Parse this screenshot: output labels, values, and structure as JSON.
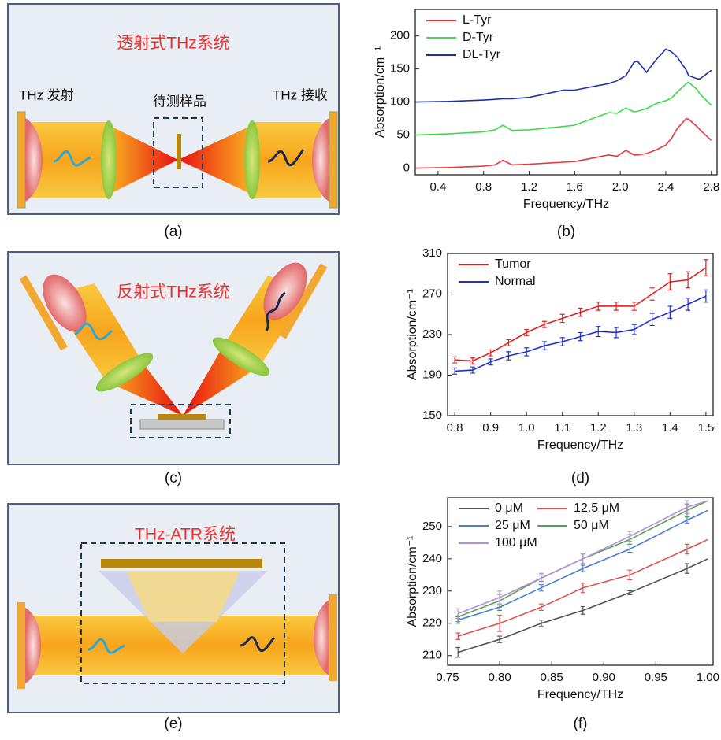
{
  "diagrams": [
    {
      "title": "透射式THz系统",
      "emitter": "THz 发射",
      "sample": "待测样品",
      "receiver": "THz 接收",
      "caption": "(a)"
    },
    {
      "title": "反射式THz系统",
      "caption": "(c)"
    },
    {
      "title": "THz-ATR系统",
      "caption": "(e)"
    }
  ],
  "chart_data": [
    {
      "type": "line",
      "caption": "(b)",
      "x_label": "Frequency/THz",
      "y_label": "Absorption/cm⁻¹",
      "legend": "upper left",
      "frame": true,
      "x": [
        0.2,
        0.5,
        0.8,
        0.9,
        0.97,
        1.05,
        1.2,
        1.5,
        1.6,
        1.9,
        1.97,
        2.05,
        2.12,
        2.15,
        2.23,
        2.32,
        2.4,
        2.45,
        2.5,
        2.58,
        2.6,
        2.68,
        2.7,
        2.8
      ],
      "series": [
        {
          "name": "L-Tyr",
          "color": "#e8383d",
          "values": [
            0,
            1,
            3,
            5,
            12,
            5,
            6,
            9,
            10,
            20,
            18,
            27,
            20,
            20,
            22,
            28,
            35,
            45,
            60,
            75,
            74,
            62,
            58,
            42
          ]
        },
        {
          "name": "D-Tyr",
          "color": "#3ddc4a",
          "values": [
            50,
            52,
            55,
            58,
            65,
            57,
            58,
            63,
            65,
            84,
            83,
            91,
            85,
            86,
            90,
            98,
            102,
            106,
            115,
            128,
            130,
            118,
            112,
            95
          ]
        },
        {
          "name": "DL-Tyr",
          "color": "#1f2fa8",
          "values": [
            100,
            101,
            103,
            104,
            105,
            105,
            107,
            118,
            118,
            128,
            132,
            140,
            160,
            162,
            145,
            165,
            180,
            176,
            168,
            148,
            140,
            135,
            135,
            148
          ]
        }
      ],
      "xlim": [
        0.2,
        2.85
      ],
      "ylim": [
        -10,
        240
      ],
      "xticks": [
        0.4,
        0.8,
        1.2,
        1.6,
        {
          "value": 2,
          "label": "2.0"
        },
        2.4,
        2.8
      ],
      "yticks": [
        0,
        50,
        100,
        150,
        200
      ]
    },
    {
      "type": "line",
      "caption": "(d)",
      "x_label": "Frequency/THz",
      "y_label": "Absorption/cm⁻¹",
      "legend": "upper left",
      "frame": true,
      "x": [
        0.8,
        0.85,
        0.9,
        0.95,
        1.0,
        1.05,
        1.1,
        1.15,
        1.2,
        1.25,
        1.3,
        1.35,
        1.4,
        1.45,
        1.5
      ],
      "series": [
        {
          "name": "Tumor",
          "color": "#e02020",
          "values": [
            205,
            204,
            212,
            222,
            232,
            240,
            246,
            252,
            258,
            258,
            258,
            270,
            282,
            284,
            296
          ],
          "errors": [
            3,
            3,
            3,
            3,
            3,
            3,
            4,
            4,
            4,
            4,
            4,
            6,
            8,
            8,
            8
          ]
        },
        {
          "name": "Normal",
          "color": "#2030d0",
          "values": [
            194,
            195,
            203,
            209,
            213,
            219,
            223,
            228,
            233,
            232,
            235,
            245,
            252,
            260,
            268
          ],
          "errors": [
            3,
            3,
            3,
            4,
            4,
            4,
            4,
            4,
            5,
            5,
            5,
            6,
            6,
            6,
            6
          ]
        }
      ],
      "xlim": [
        0.78,
        1.52
      ],
      "ylim": [
        150,
        310
      ],
      "xticks": [
        0.8,
        0.9,
        {
          "value": 1,
          "label": "1.0"
        },
        1.1,
        1.2,
        1.3,
        1.4,
        1.5
      ],
      "yticks": [
        150,
        190,
        230,
        270,
        310
      ]
    },
    {
      "type": "line",
      "caption": "(f)",
      "x_label": "Frequency/THz",
      "y_label": "Absorption/cm⁻¹",
      "legend": "upper left",
      "legend_columns": 2,
      "frame": true,
      "x": [
        0.76,
        0.8,
        0.84,
        0.88,
        0.925,
        0.98,
        1.0
      ],
      "series": [
        {
          "name": "0 μM",
          "color": "#555555",
          "values": [
            211,
            215,
            220,
            224,
            229.5,
            237,
            240
          ],
          "errors": [
            1.5,
            1,
            1,
            1.2,
            0.6,
            1.5,
            null
          ]
        },
        {
          "name": "12.5 μM",
          "color": "#d9534f",
          "values": [
            216,
            220,
            225,
            231,
            235,
            243,
            246
          ],
          "errors": [
            1,
            2.5,
            1,
            1.5,
            1.5,
            1.5,
            null
          ]
        },
        {
          "name": "25 μM",
          "color": "#4a7fd4",
          "values": [
            221,
            225,
            231,
            237,
            243,
            252,
            255
          ],
          "errors": [
            1,
            1,
            1,
            1,
            1,
            1,
            null
          ]
        },
        {
          "name": "50 μM",
          "color": "#5aa05a",
          "values": [
            222,
            227,
            234,
            240,
            246,
            255,
            258
          ],
          "errors": [
            1.5,
            2,
            1,
            1.5,
            1.5,
            2,
            null
          ]
        },
        {
          "name": "100 μM",
          "color": "#b48ed8",
          "values": [
            223,
            228,
            234,
            240,
            247,
            256,
            258
          ],
          "errors": [
            1.5,
            2,
            1.5,
            1.5,
            1.5,
            2,
            null
          ]
        }
      ],
      "xlim": [
        0.75,
        1.005
      ],
      "ylim": [
        207,
        259
      ],
      "xticks": [
        0.75,
        {
          "value": 0.8,
          "label": "0.80"
        },
        0.85,
        {
          "value": 0.9,
          "label": "0.90"
        },
        0.95,
        {
          "value": 1,
          "label": "1.00"
        }
      ],
      "yticks": [
        210,
        220,
        230,
        240,
        250
      ]
    }
  ]
}
